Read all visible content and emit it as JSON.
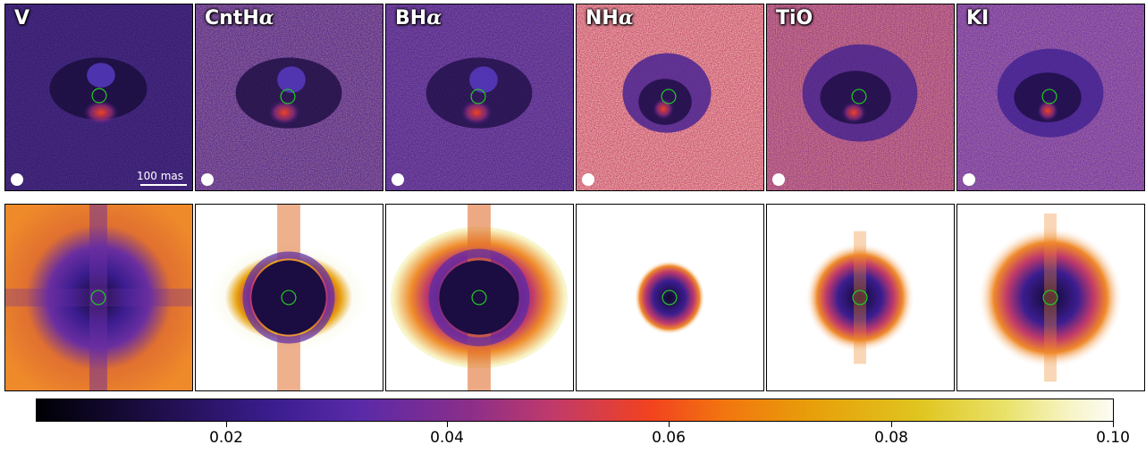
{
  "panels": {
    "top": [
      {
        "label": "V",
        "greek": ""
      },
      {
        "label": "CntH",
        "greek": "α"
      },
      {
        "label": "BH",
        "greek": "α"
      },
      {
        "label": "NH",
        "greek": "α"
      },
      {
        "label": "TiO",
        "greek": ""
      },
      {
        "label": "KI",
        "greek": ""
      }
    ]
  },
  "scale_bar": {
    "label": "100 mas"
  },
  "colorbar": {
    "ticks": [
      "0.02",
      "0.04",
      "0.06",
      "0.08",
      "0.10"
    ]
  },
  "colors": {
    "marker_circle": "#22cc22",
    "dark_bg": "#1b0c41",
    "mid": "#5a2aa8"
  }
}
